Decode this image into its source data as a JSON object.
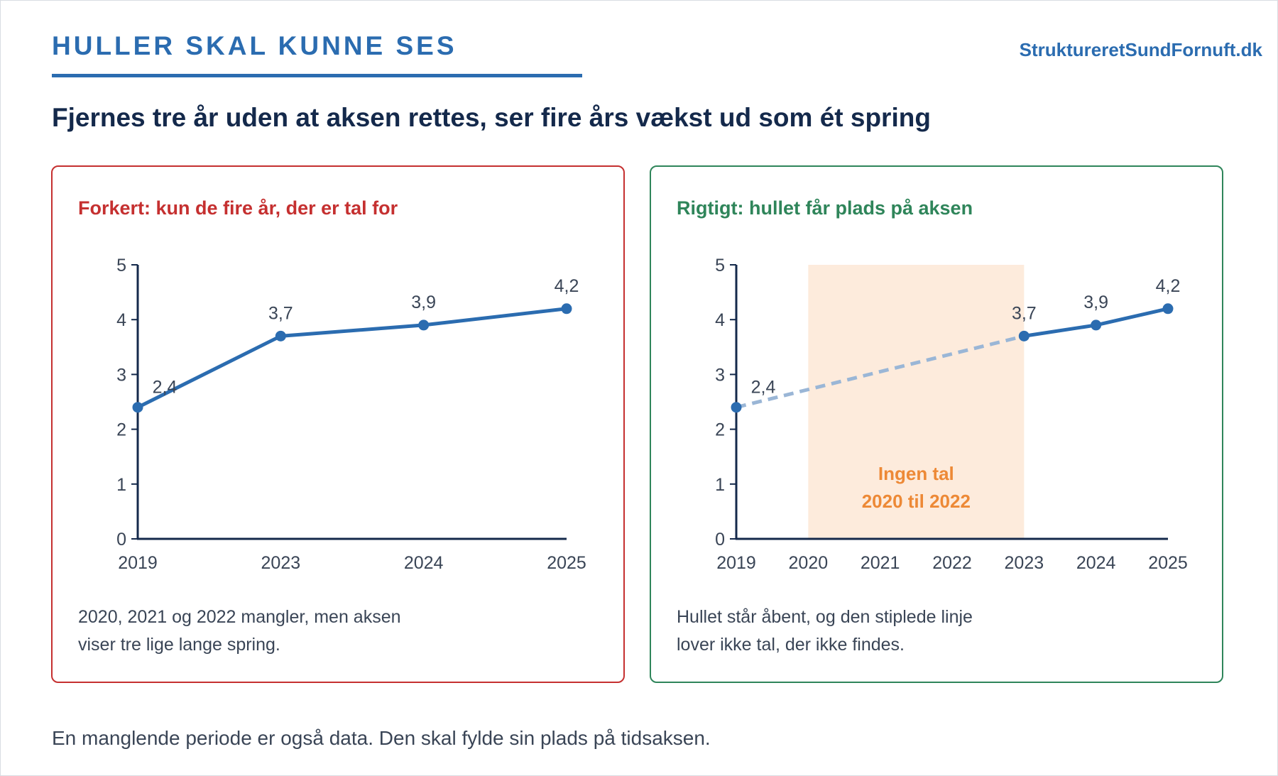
{
  "header": {
    "kicker": "HULLER SKAL KUNNE SES",
    "site": "StruktureretSundFornuft.dk",
    "title": "Fjernes tre år uden at aksen rettes, ser fire års vækst ud som ét spring"
  },
  "panels": {
    "wrong": {
      "heading": "Forkert: kun de fire år, der er tal for",
      "note_line1": "2020, 2021 og 2022 mangler, men aksen",
      "note_line2": "viser tre lige lange spring."
    },
    "right": {
      "heading": "Rigtigt: hullet får plads på aksen",
      "note_line1": "Hullet står åbent, og den stiplede linje",
      "note_line2": "lover ikke tal, der ikke findes."
    }
  },
  "footer": "En manglende periode er også data. Den skal fylde sin plads på tidsaksen.",
  "colors": {
    "line": "#2b6cb0",
    "line_dashed": "#9ab6d6",
    "axis": "#14294b",
    "gap_fill": "#fdebdc",
    "gap_text": "#ed8936",
    "tick_text": "#3a4556"
  },
  "chart_data": [
    {
      "type": "line",
      "title": "Forkert: kun de fire år, der er tal for",
      "categories": [
        "2019",
        "2023",
        "2024",
        "2025"
      ],
      "values": [
        2.4,
        3.7,
        3.9,
        4.2
      ],
      "data_labels": [
        "2,4",
        "3,7",
        "3,9",
        "4,2"
      ],
      "yticks": [
        0,
        1,
        2,
        3,
        4,
        5
      ],
      "ylim": [
        0,
        5
      ],
      "xlabel": "",
      "ylabel": "",
      "grid": false,
      "x_scale": "categorical"
    },
    {
      "type": "line",
      "title": "Rigtigt: hullet får plads på aksen",
      "x": [
        2019,
        2020,
        2021,
        2022,
        2023,
        2024,
        2025
      ],
      "xticks": [
        "2019",
        "2020",
        "2021",
        "2022",
        "2023",
        "2024",
        "2025"
      ],
      "points": [
        {
          "x": 2019,
          "y": 2.4,
          "label": "2,4"
        },
        {
          "x": 2023,
          "y": 3.7,
          "label": "3,7"
        },
        {
          "x": 2024,
          "y": 3.9,
          "label": "3,9"
        },
        {
          "x": 2025,
          "y": 4.2,
          "label": "4,2"
        }
      ],
      "dashed_segment": [
        2019,
        2023
      ],
      "gap": {
        "from": 2020,
        "to": 2023,
        "label_line1": "Ingen tal",
        "label_line2": "2020 til 2022"
      },
      "yticks": [
        0,
        1,
        2,
        3,
        4,
        5
      ],
      "ylim": [
        0,
        5
      ],
      "xlabel": "",
      "ylabel": "",
      "grid": false,
      "x_scale": "linear-years"
    }
  ]
}
